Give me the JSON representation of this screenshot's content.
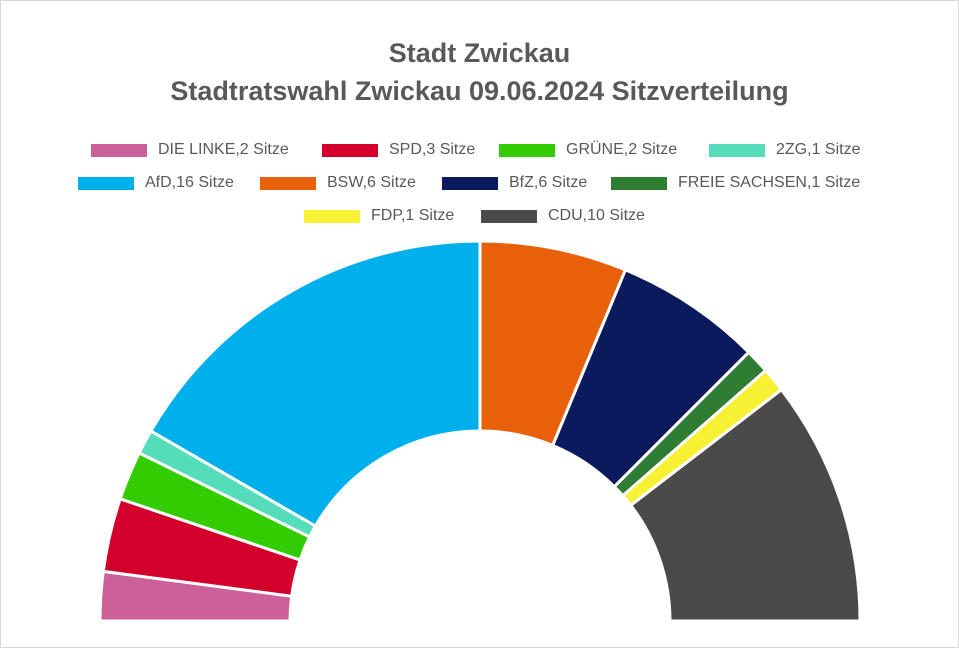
{
  "chart_data": {
    "type": "pie",
    "subtype": "parliament-half-donut",
    "title": "Stadt Zwickau",
    "subtitle": "Stadtratswahl Zwickau 09.06.2024 Sitzverteilung",
    "legend_position": "top",
    "series": [
      {
        "name": "DIE LINKE",
        "value": 2,
        "label": "DIE LINKE,2 Sitze",
        "color": "#CC6099"
      },
      {
        "name": "SPD",
        "value": 3,
        "label": "SPD,3 Sitze",
        "color": "#D2002A"
      },
      {
        "name": "GRÜNE",
        "value": 2,
        "label": "GRÜNE,2 Sitze",
        "color": "#33CC00"
      },
      {
        "name": "2ZG",
        "value": 1,
        "label": "2ZG,1 Sitze",
        "color": "#55DDBB"
      },
      {
        "name": "AfD",
        "value": 16,
        "label": "AfD,16 Sitze",
        "color": "#00B0EC"
      },
      {
        "name": "BSW",
        "value": 6,
        "label": "BSW,6 Sitze",
        "color": "#E8610A"
      },
      {
        "name": "BfZ",
        "value": 6,
        "label": "BfZ,6 Sitze",
        "color": "#0B1A5C"
      },
      {
        "name": "FREIE SACHSEN",
        "value": 1,
        "label": "FREIE SACHSEN,1 Sitze",
        "color": "#2E7D32"
      },
      {
        "name": "FDP",
        "value": 1,
        "label": "FDP,1 Sitze",
        "color": "#F8F032"
      },
      {
        "name": "CDU",
        "value": 10,
        "label": "CDU,10 Sitze",
        "color": "#4A4A4A"
      }
    ]
  }
}
